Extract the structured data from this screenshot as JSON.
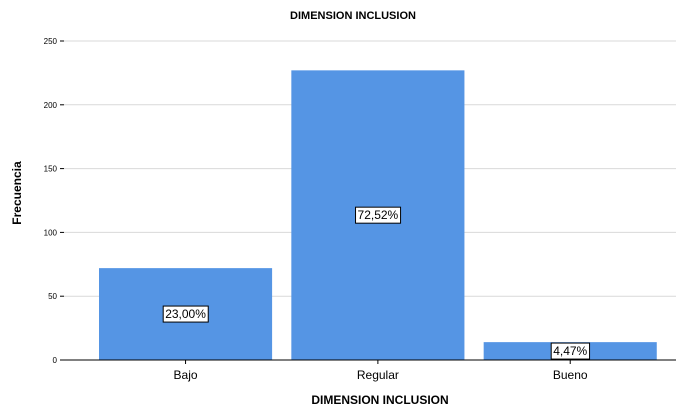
{
  "chart_data": {
    "type": "bar",
    "title": "DIMENSION INCLUSION",
    "xlabel": "DIMENSION INCLUSION",
    "ylabel": "Frecuencia",
    "categories": [
      "Bajo",
      "Regular",
      "Bueno"
    ],
    "values": [
      72,
      227,
      14
    ],
    "data_labels": [
      "23,00%",
      "72,52%",
      "4,47%"
    ],
    "ylim": [
      0,
      250
    ],
    "yticks": [
      0,
      50,
      100,
      150,
      200,
      250
    ],
    "grid": true,
    "bar_color": "#5595e4",
    "grid_color": "#d9d9d9"
  }
}
